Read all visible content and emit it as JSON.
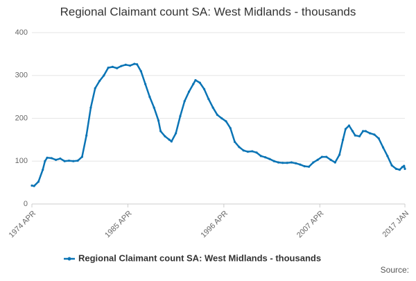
{
  "chart_data": {
    "type": "line",
    "title": "Regional Claimant count SA: West Midlands - thousands",
    "source": "Source:",
    "x": [
      1974.25,
      1974.5,
      1975,
      1975.5,
      1975.75,
      1976,
      1976.5,
      1977,
      1977.5,
      1978,
      1978.5,
      1979,
      1979.5,
      1980,
      1980.5,
      1981,
      1981.5,
      1982,
      1982.5,
      1983,
      1983.5,
      1984,
      1984.5,
      1985,
      1985.5,
      1986,
      1986.3,
      1986.75,
      1987.25,
      1987.75,
      1988.25,
      1988.75,
      1989,
      1989.5,
      1990,
      1990.25,
      1990.75,
      1991.25,
      1991.75,
      1992.25,
      1992.75,
      1993,
      1993.5,
      1994,
      1994.5,
      1995,
      1995.5,
      1996,
      1996.5,
      1997,
      1997.5,
      1998,
      1998.5,
      1999,
      1999.5,
      2000,
      2000.5,
      2001,
      2001.5,
      2002,
      2002.5,
      2003,
      2003.5,
      2004,
      2004.5,
      2005,
      2005.5,
      2006,
      2006.5,
      2007,
      2007.5,
      2008,
      2008.5,
      2009,
      2009.5,
      2009.9,
      2010.2,
      2010.6,
      2011,
      2011.3,
      2011.8,
      2012.2,
      2012.5,
      2013,
      2013.5,
      2014,
      2014.5,
      2015,
      2015.5,
      2016,
      2016.4,
      2016.7,
      2016.9,
      2017
    ],
    "series": [
      {
        "name": "Regional Claimant count SA: West Midlands - thousands",
        "color": "#0a74b5",
        "values": [
          43,
          42,
          52,
          80,
          100,
          108,
          107,
          103,
          106,
          100,
          101,
          100,
          101,
          110,
          160,
          225,
          270,
          287,
          300,
          318,
          320,
          317,
          322,
          325,
          323,
          327,
          326,
          310,
          280,
          250,
          225,
          195,
          170,
          158,
          150,
          146,
          165,
          205,
          240,
          262,
          280,
          289,
          283,
          268,
          245,
          225,
          208,
          200,
          193,
          177,
          145,
          133,
          125,
          122,
          123,
          120,
          112,
          109,
          105,
          100,
          97,
          96,
          96,
          97,
          95,
          92,
          88,
          87,
          97,
          103,
          110,
          110,
          103,
          97,
          115,
          150,
          175,
          183,
          170,
          160,
          158,
          170,
          170,
          165,
          162,
          153,
          132,
          112,
          90,
          82,
          80,
          86,
          89,
          82
        ]
      }
    ],
    "xlim": [
      1974.25,
      2017
    ],
    "xticks": [
      {
        "value": 1974.25,
        "label": "1974 APR"
      },
      {
        "value": 1985.25,
        "label": "1985 APR"
      },
      {
        "value": 1996.25,
        "label": "1996 APR"
      },
      {
        "value": 2007.25,
        "label": "2007 APR"
      },
      {
        "value": 2017,
        "label": "2017 JAN"
      }
    ],
    "ylim": [
      0,
      400
    ],
    "yticks": [
      0,
      100,
      200,
      300,
      400
    ],
    "grid": true
  }
}
